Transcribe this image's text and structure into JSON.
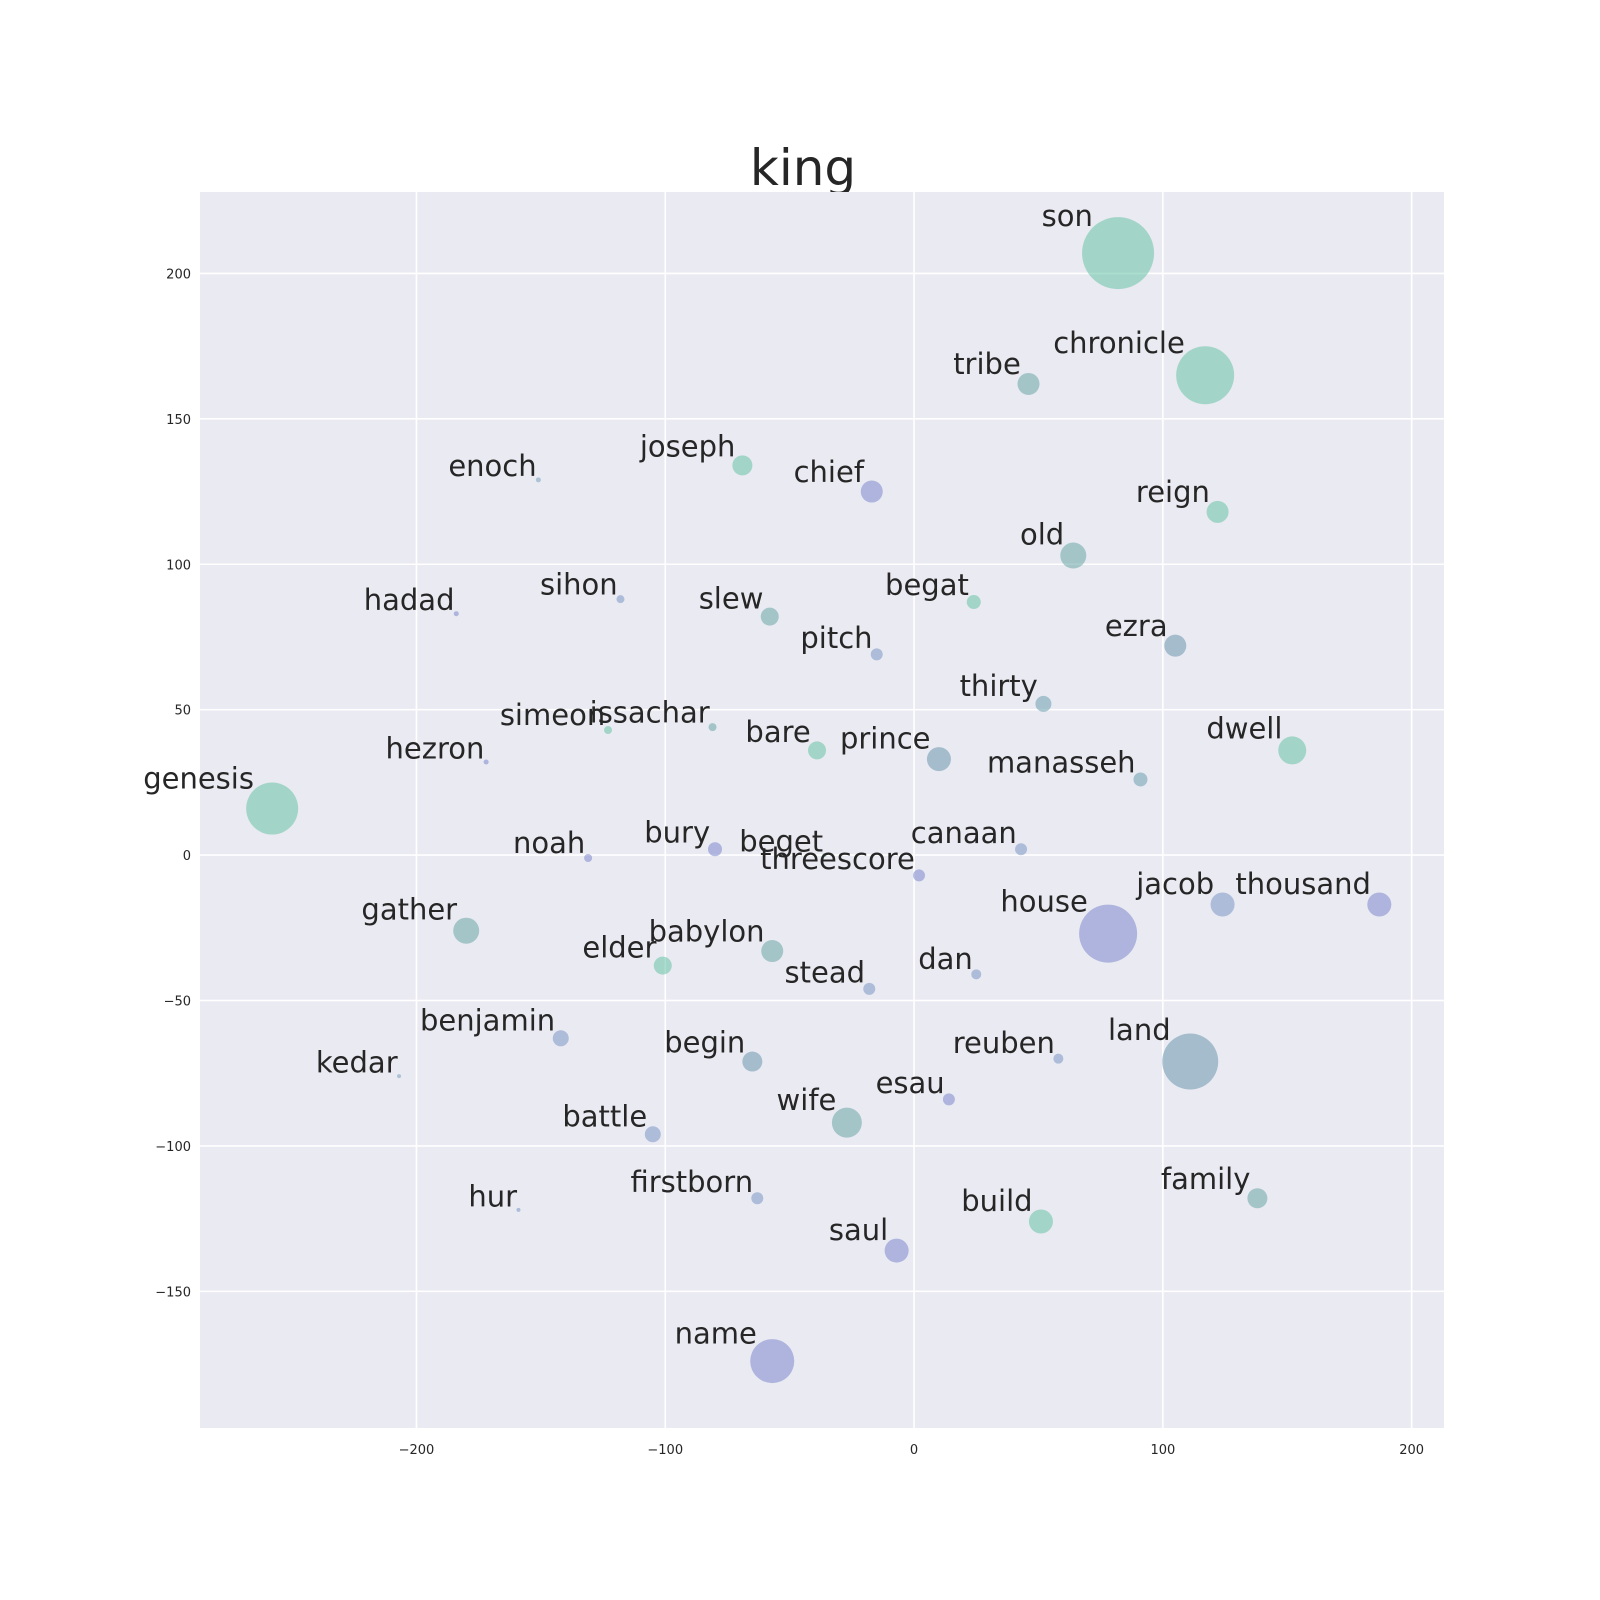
{
  "chart_data": {
    "type": "scatter",
    "title": "king",
    "xlabel": "",
    "ylabel": "",
    "xlim": [
      -287,
      213
    ],
    "ylim": [
      -197,
      228
    ],
    "grid": true,
    "background": "#eaeaf2",
    "x_ticks": [
      {
        "value": -200,
        "label": "−200"
      },
      {
        "value": -100,
        "label": "−100"
      },
      {
        "value": 0,
        "label": "0"
      },
      {
        "value": 100,
        "label": "100"
      },
      {
        "value": 200,
        "label": "200"
      }
    ],
    "y_ticks": [
      {
        "value": -150,
        "label": "−150"
      },
      {
        "value": -100,
        "label": "−100"
      },
      {
        "value": -50,
        "label": "−50"
      },
      {
        "value": 0,
        "label": "0"
      },
      {
        "value": 50,
        "label": "50"
      },
      {
        "value": 100,
        "label": "100"
      },
      {
        "value": 150,
        "label": "150"
      },
      {
        "value": 200,
        "label": "200"
      }
    ],
    "points": [
      {
        "label": "son",
        "x": 82,
        "y": 207,
        "size": 36,
        "color": "#66c2a5"
      },
      {
        "label": "chronicle",
        "x": 117,
        "y": 165,
        "size": 29,
        "color": "#66c2a5"
      },
      {
        "label": "tribe",
        "x": 46,
        "y": 162,
        "size": 11,
        "color": "#6aa6a6"
      },
      {
        "label": "enoch",
        "x": -151,
        "y": 129,
        "size": 2.5,
        "color": "#7aa0bd"
      },
      {
        "label": "joseph",
        "x": -69,
        "y": 134,
        "size": 10,
        "color": "#66c2a5"
      },
      {
        "label": "chief",
        "x": -17,
        "y": 125,
        "size": 11,
        "color": "#7c86cc"
      },
      {
        "label": "reign",
        "x": 122,
        "y": 118,
        "size": 11,
        "color": "#66c2a5"
      },
      {
        "label": "old",
        "x": 64,
        "y": 103,
        "size": 13,
        "color": "#6aa6a6"
      },
      {
        "label": "hadad",
        "x": -184,
        "y": 83,
        "size": 2.5,
        "color": "#7c86cc"
      },
      {
        "label": "sihon",
        "x": -118,
        "y": 88,
        "size": 4,
        "color": "#7a95c4"
      },
      {
        "label": "slew",
        "x": -58,
        "y": 82,
        "size": 9,
        "color": "#6aa6a6"
      },
      {
        "label": "begat",
        "x": 24,
        "y": 87,
        "size": 7,
        "color": "#66c2a5"
      },
      {
        "label": "pitch",
        "x": -15,
        "y": 69,
        "size": 6,
        "color": "#7a95c4"
      },
      {
        "label": "ezra",
        "x": 105,
        "y": 72,
        "size": 11,
        "color": "#6a96ad"
      },
      {
        "label": "thirty",
        "x": 52,
        "y": 52,
        "size": 8,
        "color": "#6a9eae"
      },
      {
        "label": "simeon",
        "x": -123,
        "y": 43,
        "size": 4,
        "color": "#66c2a5"
      },
      {
        "label": "issachar",
        "x": -81,
        "y": 44,
        "size": 4,
        "color": "#6aa6a6"
      },
      {
        "label": "bare",
        "x": -39,
        "y": 36,
        "size": 9,
        "color": "#66c2a5"
      },
      {
        "label": "prince",
        "x": 10,
        "y": 33,
        "size": 12,
        "color": "#6a96ad"
      },
      {
        "label": "manasseh",
        "x": 91,
        "y": 26,
        "size": 7,
        "color": "#6a9eae"
      },
      {
        "label": "dwell",
        "x": 152,
        "y": 36,
        "size": 14,
        "color": "#66c2a5"
      },
      {
        "label": "hezron",
        "x": -172,
        "y": 32,
        "size": 2.5,
        "color": "#7c86cc"
      },
      {
        "label": "genesis",
        "x": -258,
        "y": 16,
        "size": 26,
        "color": "#66c2a5"
      },
      {
        "label": "noah",
        "x": -131,
        "y": -1,
        "size": 4,
        "color": "#7c86cc"
      },
      {
        "label": "bury",
        "x": -80,
        "y": 2,
        "size": 7,
        "color": "#7c86cc"
      },
      {
        "label": "beget",
        "x": -36,
        "y": 0,
        "size": 2,
        "color": "#66c2a5"
      },
      {
        "label": "threescore",
        "x": 2,
        "y": -7,
        "size": 6,
        "color": "#7c86cc"
      },
      {
        "label": "canaan",
        "x": 43,
        "y": 2,
        "size": 6,
        "color": "#7a95c4"
      },
      {
        "label": "jacob",
        "x": 124,
        "y": -17,
        "size": 12,
        "color": "#7a95c4"
      },
      {
        "label": "thousand",
        "x": 187,
        "y": -17,
        "size": 12,
        "color": "#7c86cc"
      },
      {
        "label": "house",
        "x": 78,
        "y": -27,
        "size": 29,
        "color": "#7c86cc"
      },
      {
        "label": "gather",
        "x": -180,
        "y": -26,
        "size": 13,
        "color": "#6aa6a6"
      },
      {
        "label": "elder",
        "x": -101,
        "y": -38,
        "size": 9,
        "color": "#66c2a5"
      },
      {
        "label": "babylon",
        "x": -57,
        "y": -33,
        "size": 11,
        "color": "#6aa6a6"
      },
      {
        "label": "stead",
        "x": -18,
        "y": -46,
        "size": 6,
        "color": "#7a95c4"
      },
      {
        "label": "dan",
        "x": 25,
        "y": -41,
        "size": 5,
        "color": "#7a95c4"
      },
      {
        "label": "benjamin",
        "x": -142,
        "y": -63,
        "size": 8,
        "color": "#7a95c4"
      },
      {
        "label": "kedar",
        "x": -207,
        "y": -76,
        "size": 2,
        "color": "#7aa0bd"
      },
      {
        "label": "begin",
        "x": -65,
        "y": -71,
        "size": 10,
        "color": "#6a96ad"
      },
      {
        "label": "reuben",
        "x": 58,
        "y": -70,
        "size": 5,
        "color": "#7a95c4"
      },
      {
        "label": "land",
        "x": 111,
        "y": -71,
        "size": 28,
        "color": "#6a96ad"
      },
      {
        "label": "esau",
        "x": 14,
        "y": -84,
        "size": 6,
        "color": "#7c86cc"
      },
      {
        "label": "wife",
        "x": -27,
        "y": -92,
        "size": 15,
        "color": "#6aa6a6"
      },
      {
        "label": "battle",
        "x": -105,
        "y": -96,
        "size": 8,
        "color": "#7a95c4"
      },
      {
        "label": "hur",
        "x": -159,
        "y": -122,
        "size": 2,
        "color": "#7a95c4"
      },
      {
        "label": "firstborn",
        "x": -63,
        "y": -118,
        "size": 6,
        "color": "#7a95c4"
      },
      {
        "label": "family",
        "x": 138,
        "y": -118,
        "size": 10,
        "color": "#6aa6a6"
      },
      {
        "label": "build",
        "x": 51,
        "y": -126,
        "size": 12,
        "color": "#66c2a5"
      },
      {
        "label": "saul",
        "x": -7,
        "y": -136,
        "size": 12,
        "color": "#7c86cc"
      },
      {
        "label": "name",
        "x": -57,
        "y": -174,
        "size": 22,
        "color": "#7c86cc"
      }
    ]
  }
}
